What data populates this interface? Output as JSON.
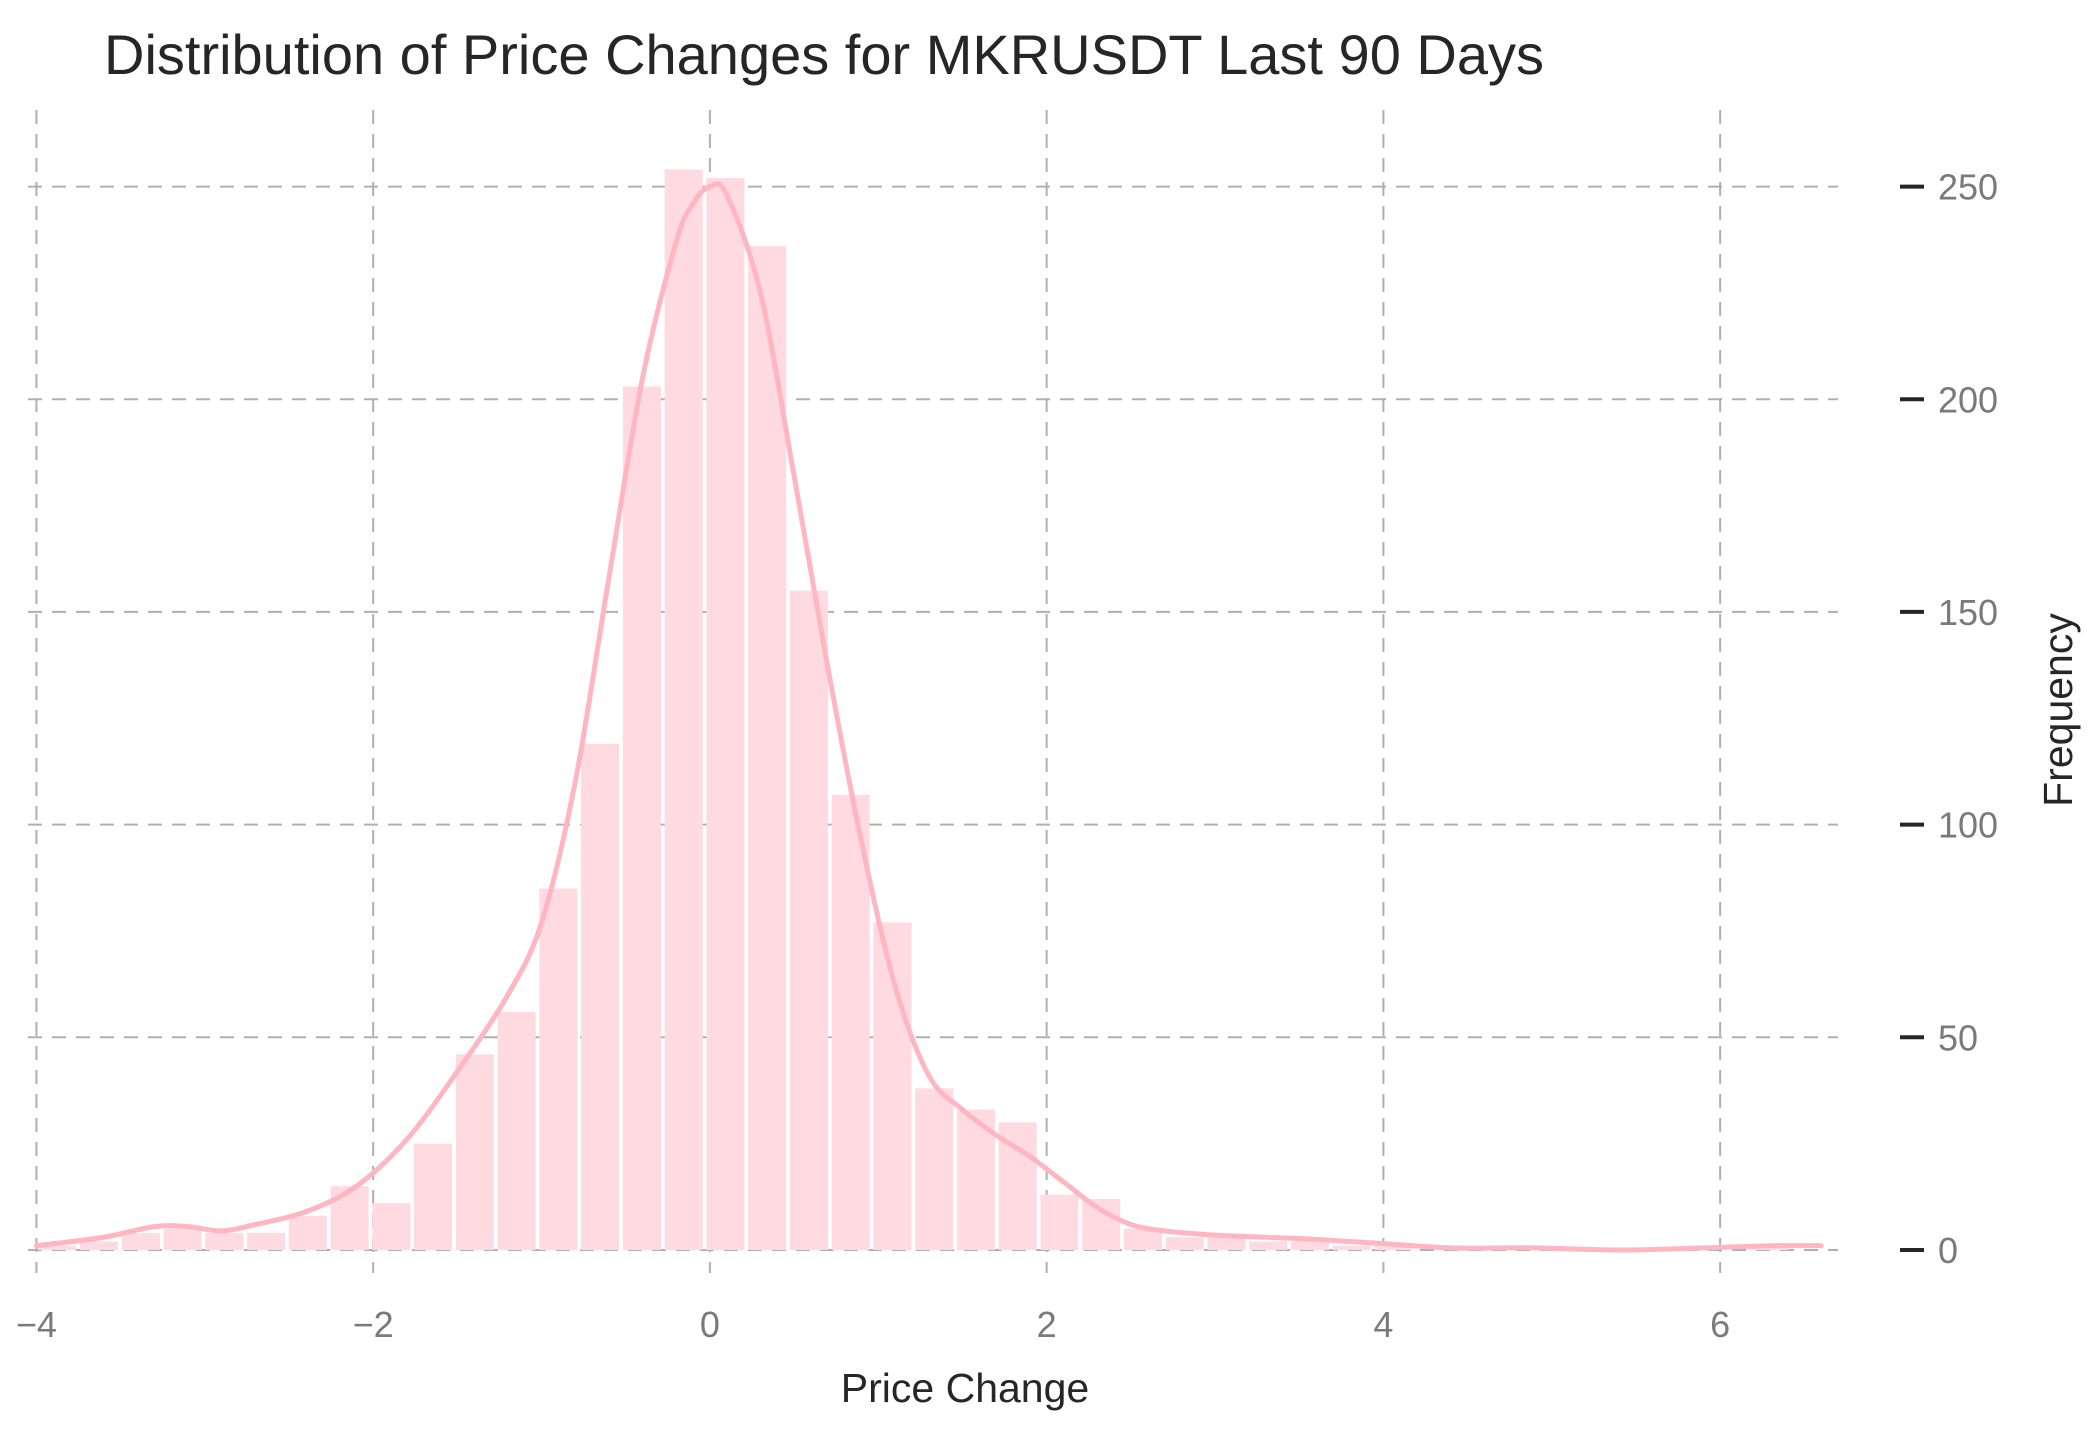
{
  "chart_data": {
    "type": "bar",
    "title": "Distribution of Price Changes for MKRUSDT Last 90 Days",
    "xlabel": "Price Change",
    "ylabel": "Frequency",
    "xlim": [
      -4.05,
      6.7
    ],
    "ylim": [
      -4,
      268
    ],
    "xticks": [
      -4,
      -2,
      0,
      2,
      4,
      6
    ],
    "xtick_labels": [
      "−4",
      "−2",
      "0",
      "2",
      "4",
      "6"
    ],
    "yticks": [
      0,
      50,
      100,
      150,
      200,
      250
    ],
    "ytick_labels": [
      "0",
      "50",
      "100",
      "150",
      "200",
      "250"
    ],
    "y_axis_side": "right",
    "grid": true,
    "bin_width": 0.248,
    "bins": [
      {
        "x0": -4.0,
        "count": 1
      },
      {
        "x0": -3.752,
        "count": 2
      },
      {
        "x0": -3.504,
        "count": 4
      },
      {
        "x0": -3.256,
        "count": 5
      },
      {
        "x0": -3.008,
        "count": 4
      },
      {
        "x0": -2.76,
        "count": 4
      },
      {
        "x0": -2.512,
        "count": 8
      },
      {
        "x0": -2.264,
        "count": 15
      },
      {
        "x0": -2.016,
        "count": 11
      },
      {
        "x0": -1.768,
        "count": 25
      },
      {
        "x0": -1.52,
        "count": 46
      },
      {
        "x0": -1.272,
        "count": 56
      },
      {
        "x0": -1.024,
        "count": 85
      },
      {
        "x0": -0.776,
        "count": 119
      },
      {
        "x0": -0.528,
        "count": 203
      },
      {
        "x0": -0.28,
        "count": 254
      },
      {
        "x0": -0.032,
        "count": 252
      },
      {
        "x0": 0.216,
        "count": 236
      },
      {
        "x0": 0.464,
        "count": 155
      },
      {
        "x0": 0.712,
        "count": 107
      },
      {
        "x0": 0.96,
        "count": 77
      },
      {
        "x0": 1.208,
        "count": 38
      },
      {
        "x0": 1.456,
        "count": 33
      },
      {
        "x0": 1.704,
        "count": 30
      },
      {
        "x0": 1.952,
        "count": 13
      },
      {
        "x0": 2.2,
        "count": 12
      },
      {
        "x0": 2.448,
        "count": 5
      },
      {
        "x0": 2.696,
        "count": 3
      },
      {
        "x0": 2.944,
        "count": 3
      },
      {
        "x0": 3.192,
        "count": 2
      },
      {
        "x0": 3.44,
        "count": 2
      },
      {
        "x0": 3.688,
        "count": 1
      },
      {
        "x0": 3.936,
        "count": 1
      },
      {
        "x0": 4.184,
        "count": 0
      },
      {
        "x0": 4.432,
        "count": 0
      },
      {
        "x0": 4.68,
        "count": 1
      },
      {
        "x0": 4.928,
        "count": 0
      },
      {
        "x0": 5.176,
        "count": 0
      },
      {
        "x0": 5.424,
        "count": 0
      },
      {
        "x0": 5.672,
        "count": 0
      },
      {
        "x0": 5.92,
        "count": 0
      },
      {
        "x0": 6.168,
        "count": 1
      },
      {
        "x0": 6.416,
        "count": 0
      }
    ],
    "kde": {
      "x": [
        -4.0,
        -3.6,
        -3.3,
        -3.1,
        -2.9,
        -2.7,
        -2.4,
        -2.1,
        -1.8,
        -1.5,
        -1.2,
        -1.0,
        -0.8,
        -0.6,
        -0.4,
        -0.2,
        -0.1,
        0.0,
        0.1,
        0.3,
        0.5,
        0.7,
        0.9,
        1.1,
        1.3,
        1.5,
        1.7,
        1.9,
        2.1,
        2.3,
        2.5,
        2.7,
        3.0,
        3.3,
        3.6,
        4.0,
        4.4,
        4.9,
        5.4,
        5.9,
        6.3,
        6.6
      ],
      "y": [
        1,
        3,
        5.5,
        5.5,
        4.5,
        6,
        9,
        15,
        26,
        42,
        60,
        77,
        110,
        158,
        205,
        237,
        246,
        250,
        248,
        225,
        182,
        137,
        96,
        62,
        41,
        33,
        27,
        22,
        16,
        10,
        6,
        4.5,
        3.5,
        3,
        2.5,
        1.5,
        0.5,
        0.5,
        0,
        0.5,
        1,
        1
      ]
    },
    "bar_color": "#ffdae0",
    "line_color": "#ffb6c1",
    "grid_color": "#b0b0b0"
  }
}
